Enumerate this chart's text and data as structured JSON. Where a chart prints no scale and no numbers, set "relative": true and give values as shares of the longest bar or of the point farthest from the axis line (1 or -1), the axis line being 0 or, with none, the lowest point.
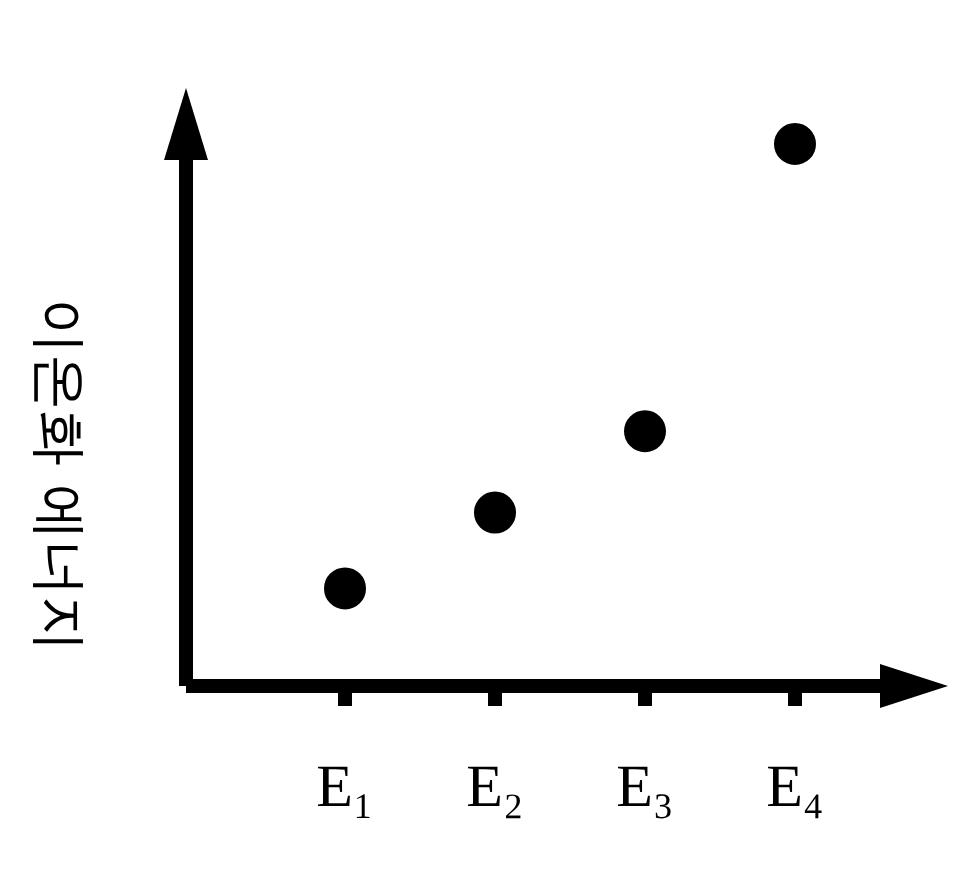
{
  "chart_data": {
    "type": "scatter",
    "ylabel": "이온화 에너지",
    "categories": [
      "E₁",
      "E₂",
      "E₃",
      "E₄"
    ],
    "relative": true,
    "series": [
      {
        "color": "#000000",
        "values": [
          0.18,
          0.32,
          0.47,
          1
        ]
      }
    ],
    "marker": "circle",
    "grid": false,
    "legend": false
  }
}
